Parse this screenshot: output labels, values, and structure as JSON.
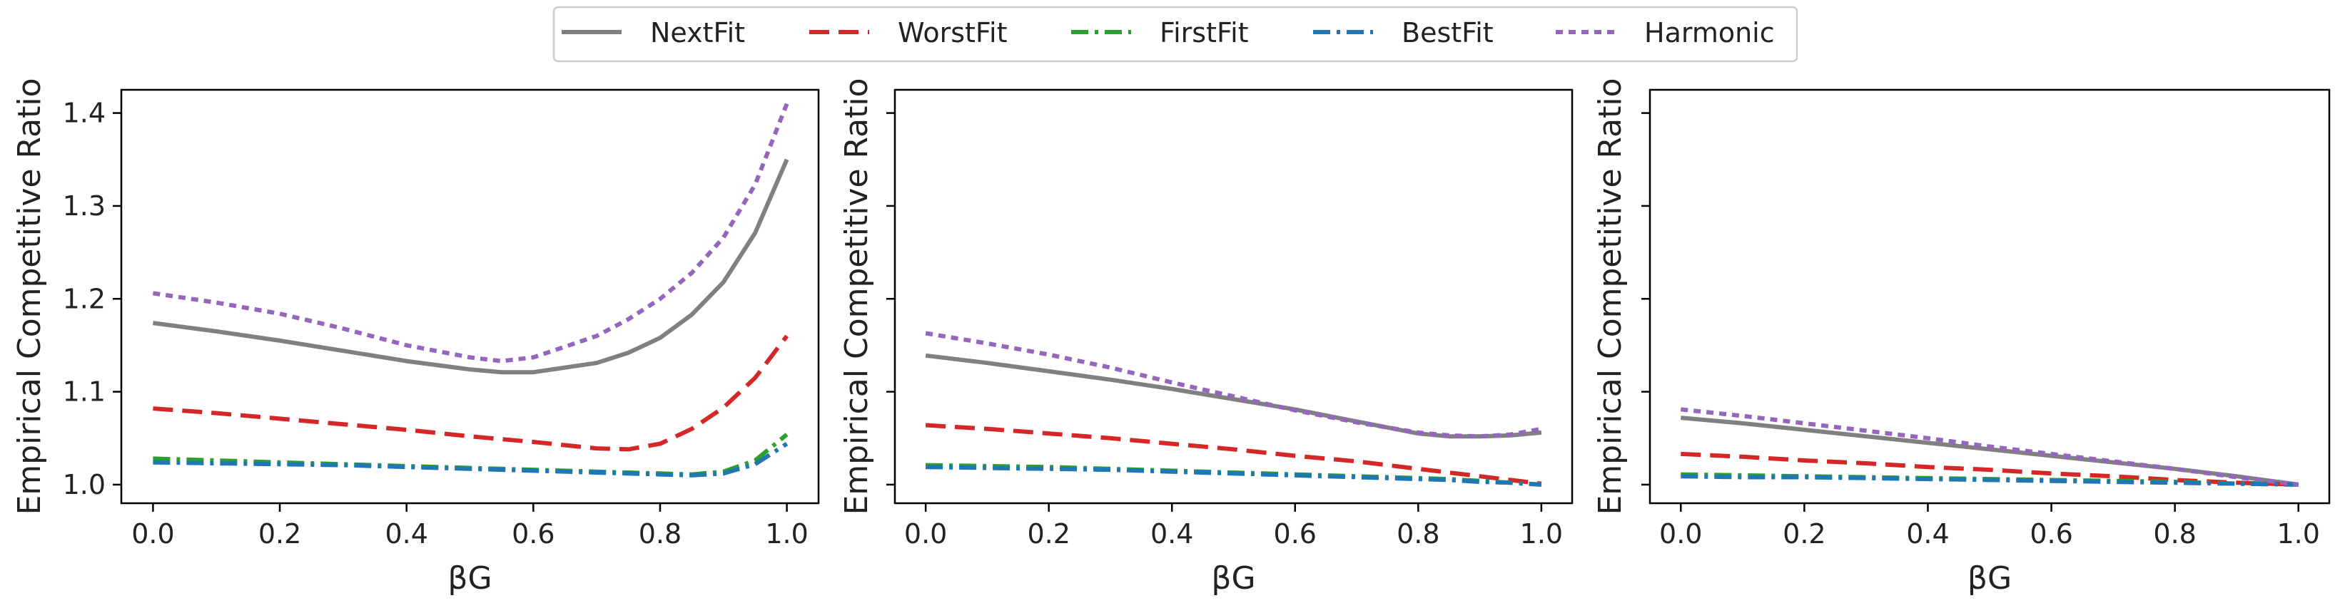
{
  "legend": {
    "location": "top-center",
    "entries": [
      {
        "name": "NextFit",
        "color": "#808080",
        "dash": "solid"
      },
      {
        "name": "WorstFit",
        "color": "#d62728",
        "dash": "dashed"
      },
      {
        "name": "FirstFit",
        "color": "#2ca02c",
        "dash": "dashdot"
      },
      {
        "name": "BestFit",
        "color": "#1f77b4",
        "dash": "dashdot"
      },
      {
        "name": "Harmonic",
        "color": "#9467bd",
        "dash": "dotted"
      }
    ]
  },
  "chart_data": [
    {
      "type": "line",
      "xlabel": "βG",
      "ylabel": "Empirical Competitive Ratio",
      "xlim": [
        -0.05,
        1.05
      ],
      "ylim": [
        0.98,
        1.425
      ],
      "xticks": [
        "0.0",
        "0.2",
        "0.4",
        "0.6",
        "0.8",
        "1.0"
      ],
      "yticks": [
        "1.0",
        "1.1",
        "1.2",
        "1.3",
        "1.4"
      ],
      "ytick_labels_shown": true,
      "grid": false,
      "x": [
        0.0,
        0.1,
        0.2,
        0.3,
        0.4,
        0.5,
        0.55,
        0.6,
        0.7,
        0.75,
        0.8,
        0.85,
        0.9,
        0.95,
        1.0
      ],
      "series": [
        {
          "name": "NextFit",
          "values": [
            1.174,
            1.165,
            1.155,
            1.144,
            1.133,
            1.124,
            1.121,
            1.121,
            1.131,
            1.142,
            1.158,
            1.183,
            1.218,
            1.271,
            1.35
          ]
        },
        {
          "name": "WorstFit",
          "values": [
            1.082,
            1.077,
            1.071,
            1.065,
            1.059,
            1.052,
            1.049,
            1.046,
            1.039,
            1.038,
            1.044,
            1.06,
            1.083,
            1.115,
            1.16
          ]
        },
        {
          "name": "FirstFit",
          "values": [
            1.028,
            1.026,
            1.024,
            1.022,
            1.02,
            1.018,
            1.017,
            1.016,
            1.014,
            1.013,
            1.012,
            1.011,
            1.014,
            1.026,
            1.054
          ]
        },
        {
          "name": "BestFit",
          "values": [
            1.024,
            1.023,
            1.022,
            1.021,
            1.019,
            1.017,
            1.016,
            1.015,
            1.013,
            1.012,
            1.011,
            1.01,
            1.012,
            1.022,
            1.044
          ]
        },
        {
          "name": "Harmonic",
          "values": [
            1.206,
            1.196,
            1.184,
            1.168,
            1.15,
            1.137,
            1.133,
            1.137,
            1.16,
            1.178,
            1.2,
            1.228,
            1.266,
            1.323,
            1.41
          ]
        }
      ]
    },
    {
      "type": "line",
      "xlabel": "βG",
      "ylabel": "Empirical Competitive Ratio",
      "xlim": [
        -0.05,
        1.05
      ],
      "ylim": [
        0.98,
        1.425
      ],
      "xticks": [
        "0.0",
        "0.2",
        "0.4",
        "0.6",
        "0.8",
        "1.0"
      ],
      "yticks": [
        "1.0",
        "1.1",
        "1.2",
        "1.3",
        "1.4"
      ],
      "ytick_labels_shown": false,
      "grid": false,
      "x": [
        0.0,
        0.1,
        0.2,
        0.3,
        0.4,
        0.5,
        0.6,
        0.7,
        0.8,
        0.85,
        0.9,
        0.95,
        1.0
      ],
      "series": [
        {
          "name": "NextFit",
          "values": [
            1.139,
            1.131,
            1.122,
            1.113,
            1.103,
            1.092,
            1.081,
            1.068,
            1.055,
            1.052,
            1.052,
            1.053,
            1.056
          ]
        },
        {
          "name": "WorstFit",
          "values": [
            1.064,
            1.06,
            1.055,
            1.05,
            1.044,
            1.038,
            1.031,
            1.025,
            1.017,
            1.013,
            1.009,
            1.005,
            1.001
          ]
        },
        {
          "name": "FirstFit",
          "values": [
            1.021,
            1.02,
            1.019,
            1.017,
            1.015,
            1.013,
            1.011,
            1.009,
            1.007,
            1.006,
            1.004,
            1.002,
            1.0
          ]
        },
        {
          "name": "BestFit",
          "values": [
            1.019,
            1.018,
            1.017,
            1.016,
            1.014,
            1.012,
            1.01,
            1.008,
            1.006,
            1.005,
            1.003,
            1.002,
            1.0
          ]
        },
        {
          "name": "Harmonic",
          "values": [
            1.163,
            1.152,
            1.14,
            1.126,
            1.11,
            1.095,
            1.08,
            1.067,
            1.056,
            1.053,
            1.052,
            1.054,
            1.06
          ]
        }
      ]
    },
    {
      "type": "line",
      "xlabel": "βG",
      "ylabel": "Empirical Competitive Ratio",
      "xlim": [
        -0.05,
        1.05
      ],
      "ylim": [
        0.98,
        1.425
      ],
      "xticks": [
        "0.0",
        "0.2",
        "0.4",
        "0.6",
        "0.8",
        "1.0"
      ],
      "yticks": [
        "1.0",
        "1.1",
        "1.2",
        "1.3",
        "1.4"
      ],
      "ytick_labels_shown": false,
      "grid": false,
      "x": [
        0.0,
        0.1,
        0.2,
        0.3,
        0.4,
        0.5,
        0.6,
        0.7,
        0.8,
        0.9,
        1.0
      ],
      "series": [
        {
          "name": "NextFit",
          "values": [
            1.072,
            1.066,
            1.059,
            1.052,
            1.045,
            1.038,
            1.031,
            1.024,
            1.017,
            1.009,
            1.0
          ]
        },
        {
          "name": "WorstFit",
          "values": [
            1.033,
            1.03,
            1.026,
            1.023,
            1.019,
            1.016,
            1.012,
            1.009,
            1.005,
            1.002,
            1.0
          ]
        },
        {
          "name": "FirstFit",
          "values": [
            1.011,
            1.01,
            1.009,
            1.008,
            1.007,
            1.006,
            1.005,
            1.004,
            1.003,
            1.001,
            1.0
          ]
        },
        {
          "name": "BestFit",
          "values": [
            1.009,
            1.008,
            1.008,
            1.007,
            1.006,
            1.005,
            1.004,
            1.003,
            1.002,
            1.001,
            1.0
          ]
        },
        {
          "name": "Harmonic",
          "values": [
            1.081,
            1.074,
            1.066,
            1.058,
            1.05,
            1.041,
            1.033,
            1.025,
            1.017,
            1.008,
            1.0
          ]
        }
      ]
    }
  ]
}
